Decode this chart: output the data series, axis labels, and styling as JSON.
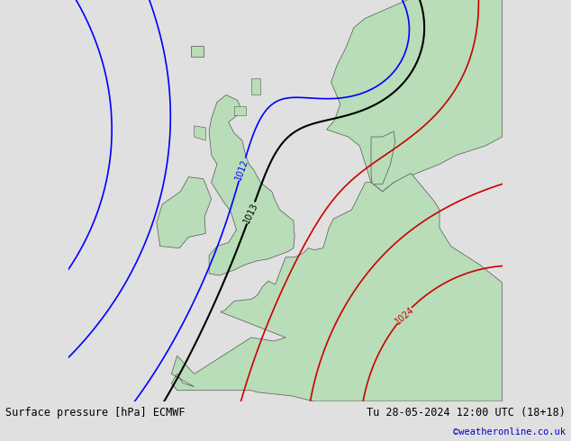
{
  "title_left": "Surface pressure [hPa] ECMWF",
  "title_right": "Tu 28-05-2024 12:00 UTC (18+18)",
  "copyright": "©weatheronline.co.uk",
  "copyright_color": "#0000cc",
  "sea_color": "#d8d8d8",
  "land_color": "#b8ddb8",
  "land_border_color": "#555555",
  "label_color_blue": "#0000ff",
  "label_color_black": "#000000",
  "label_color_red": "#cc0000",
  "figsize": [
    6.34,
    4.9
  ],
  "dpi": 100,
  "lon_min": -18,
  "lon_max": 20,
  "lat_min": 43,
  "lat_max": 65,
  "aspect": 1.6
}
